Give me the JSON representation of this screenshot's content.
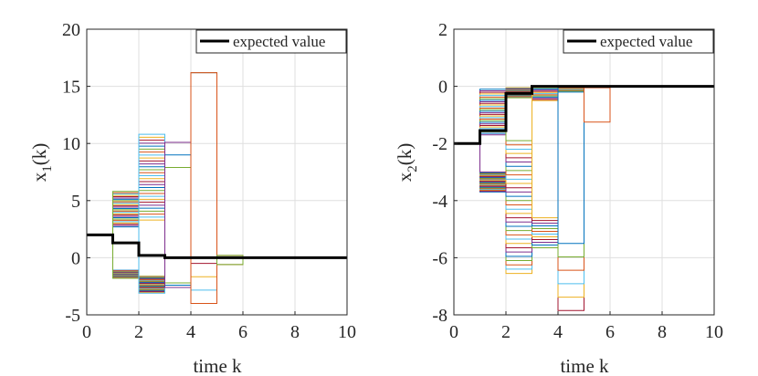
{
  "chart_data": [
    {
      "type": "line",
      "title": "",
      "xlabel": "time k",
      "ylabel": "x",
      "ylabel_sub": "1",
      "ylabel_suffix": "(k)",
      "xlim": [
        0,
        10
      ],
      "ylim": [
        -5,
        20
      ],
      "xticks": [
        0,
        2,
        4,
        6,
        8,
        10
      ],
      "yticks": [
        -5,
        0,
        5,
        10,
        15,
        20
      ],
      "grid": true,
      "legend": {
        "placement": "top-right",
        "entries": [
          "expected value"
        ]
      },
      "expected": {
        "name": "expected value",
        "color": "#000000",
        "x": [
          0,
          1,
          1,
          2,
          2,
          3,
          3,
          4,
          4,
          10
        ],
        "y": [
          2.0,
          2.0,
          1.3,
          1.3,
          0.2,
          0.2,
          0.0,
          0.0,
          0.0,
          0.0
        ]
      },
      "sample_bands": [
        {
          "x0": 1,
          "x1": 2,
          "y_start": 2.0,
          "upper": [
            2.7,
            5.8
          ],
          "lower": [
            -1.1,
            -1.8
          ],
          "count": 28
        },
        {
          "x0": 2,
          "x1": 3,
          "y_start": 1.3,
          "upper": [
            3.3,
            10.8
          ],
          "lower": [
            -1.6,
            -3.1
          ],
          "count": 30
        },
        {
          "x0": 3,
          "x1": 4,
          "y_start": 0.2,
          "upper": [
            7.9,
            10.1
          ],
          "lower": [
            -2.2,
            -2.6
          ],
          "count": 3
        },
        {
          "x0": 4,
          "x1": 5,
          "y_start": 0.0,
          "upper": [
            16.2,
            16.2
          ],
          "lower": [
            -0.5,
            -4.0
          ],
          "count": 4
        },
        {
          "x0": 5,
          "x1": 6,
          "y_start": 0.0,
          "upper": [
            0.2,
            0.2
          ],
          "lower": [
            -0.6,
            -0.6
          ],
          "count": 2
        }
      ]
    },
    {
      "type": "line",
      "title": "",
      "xlabel": "time k",
      "ylabel": "x",
      "ylabel_sub": "2",
      "ylabel_suffix": "(k)",
      "xlim": [
        0,
        10
      ],
      "ylim": [
        -8,
        2
      ],
      "xticks": [
        0,
        2,
        4,
        6,
        8,
        10
      ],
      "yticks": [
        -8,
        -6,
        -4,
        -2,
        0,
        2
      ],
      "grid": true,
      "legend": {
        "placement": "top-right",
        "entries": [
          "expected value"
        ]
      },
      "expected": {
        "name": "expected value",
        "color": "#000000",
        "x": [
          0,
          1,
          1,
          2,
          2,
          3,
          3,
          10
        ],
        "y": [
          -2.0,
          -2.0,
          -1.55,
          -1.55,
          -0.25,
          -0.25,
          0.0,
          0.0
        ]
      },
      "sample_bands": [
        {
          "x0": 1,
          "x1": 2,
          "y_start": -2.0,
          "upper": [
            -0.1,
            -1.7
          ],
          "lower": [
            -3.7,
            -3.0
          ],
          "count": 30
        },
        {
          "x0": 2,
          "x1": 3,
          "y_start": -1.55,
          "upper": [
            -0.05,
            -0.4
          ],
          "lower": [
            -6.55,
            -1.9
          ],
          "count": 32
        },
        {
          "x0": 3,
          "x1": 4,
          "y_start": -0.25,
          "upper": [
            -0.05,
            -0.5
          ],
          "lower": [
            -5.65,
            -4.6
          ],
          "count": 12
        },
        {
          "x0": 4,
          "x1": 5,
          "y_start": 0.0,
          "upper": [
            -0.05,
            -0.2
          ],
          "lower": [
            -7.85,
            -5.5
          ],
          "count": 6
        },
        {
          "x0": 5,
          "x1": 6,
          "y_start": 0.0,
          "upper": [
            -0.05,
            -0.05
          ],
          "lower": [
            -1.25,
            -1.25
          ],
          "count": 1
        }
      ]
    }
  ],
  "colors": {
    "axes": "#262626",
    "grid": "#dfdfdf",
    "expected": "#000000",
    "palette": [
      "#0072BD",
      "#D95319",
      "#EDB120",
      "#7E2F8E",
      "#77AC30",
      "#4DBEEE",
      "#A2142F"
    ]
  }
}
